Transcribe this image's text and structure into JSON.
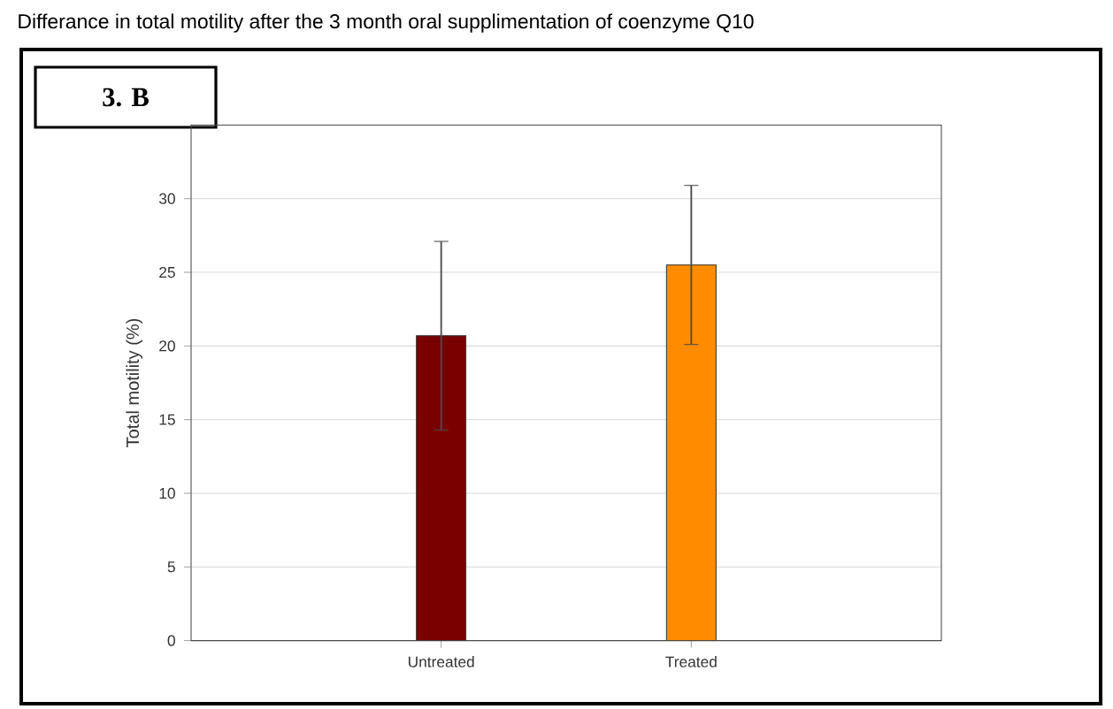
{
  "chart_data": {
    "type": "bar",
    "title": "Differance in total motility after the 3 month oral supplimentation of coenzyme Q10",
    "ylabel": "Total motility (%)",
    "annotations": [
      "3. B"
    ],
    "categories": [
      "Untreated",
      "Treated"
    ],
    "values": [
      20.7,
      25.5
    ],
    "errors": [
      6.4,
      5.4
    ],
    "colors": [
      "#7a0000",
      "#ff8c00"
    ],
    "ylim": [
      0,
      35
    ],
    "yticks": [
      0,
      5,
      10,
      15,
      20,
      25,
      30
    ],
    "grid": "y"
  }
}
